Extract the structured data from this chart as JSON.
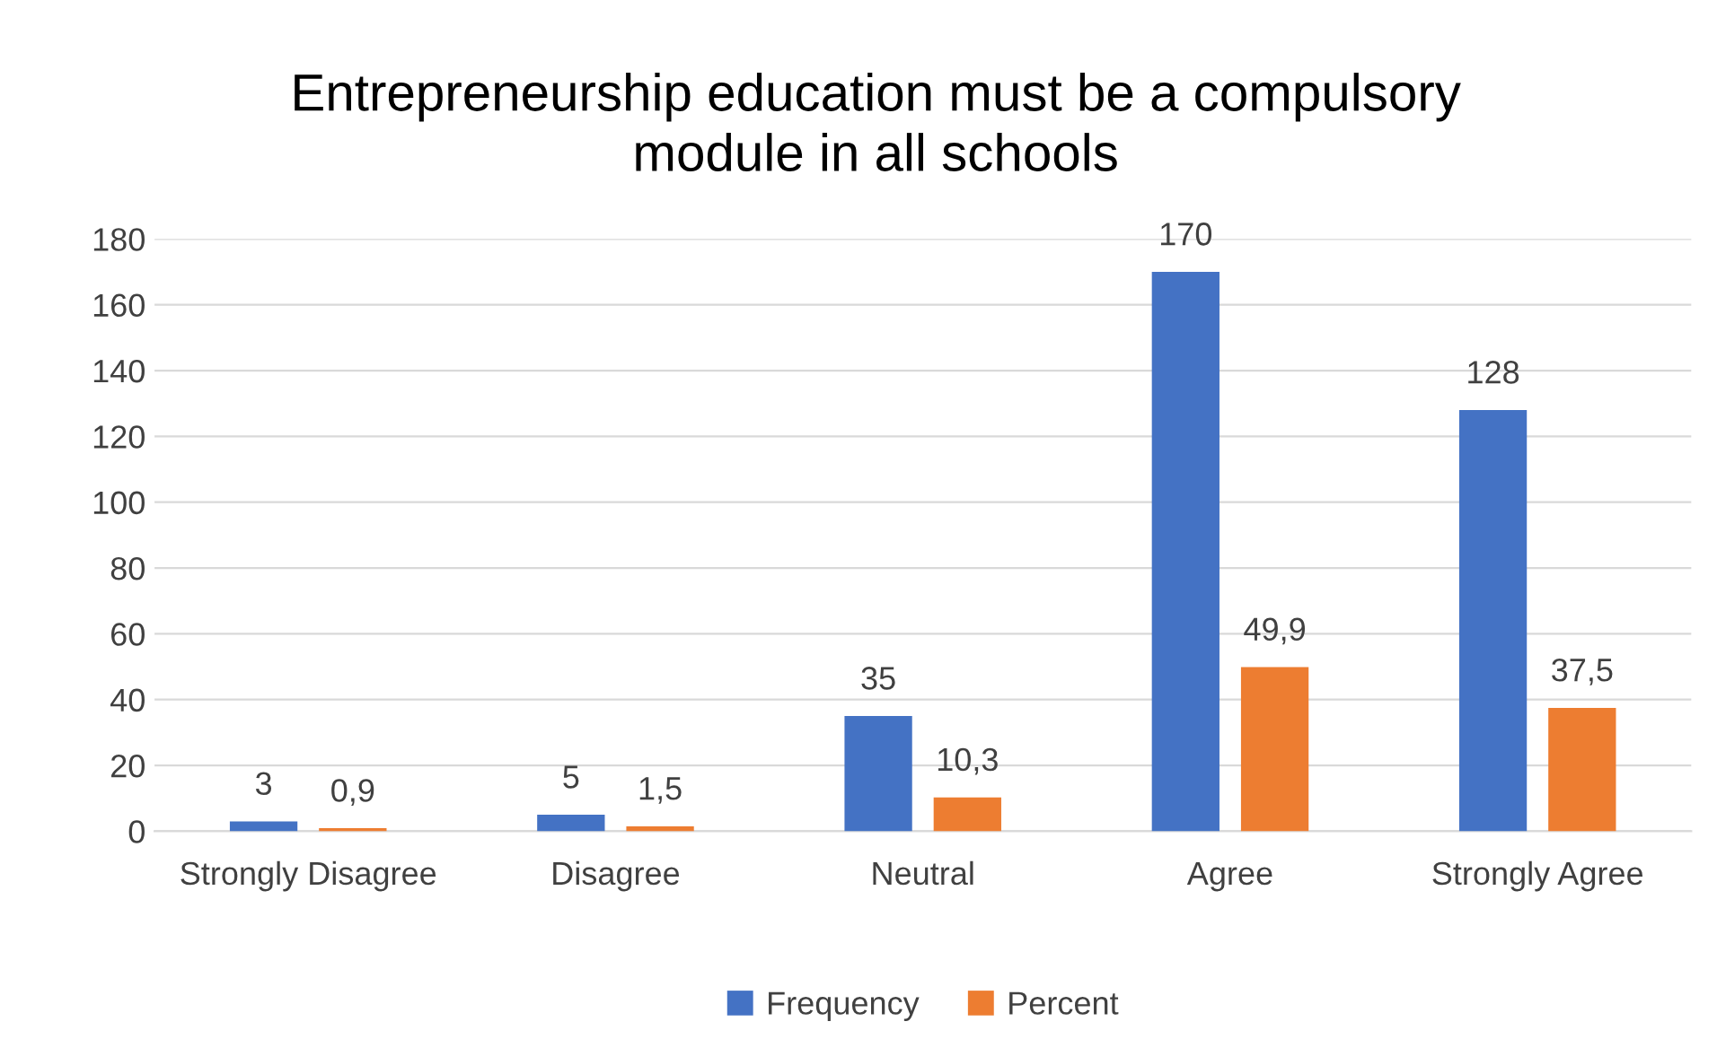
{
  "chart_data": {
    "type": "bar",
    "title": "Entrepreneurship education must be a compulsory\nmodule in all schools",
    "categories": [
      "Strongly Disagree",
      "Disagree",
      "Neutral",
      "Agree",
      "Strongly Agree"
    ],
    "series": [
      {
        "name": "Frequency",
        "color": "#4472c4",
        "values": [
          3,
          5,
          35,
          170,
          128
        ],
        "value_labels": [
          "3",
          "5",
          "35",
          "170",
          "128"
        ]
      },
      {
        "name": "Percent",
        "color": "#ed7d31",
        "values": [
          0.9,
          1.5,
          10.3,
          49.9,
          37.5
        ],
        "value_labels": [
          "0,9",
          "1,5",
          "10,3",
          "49,9",
          "37,5"
        ]
      }
    ],
    "ylim": [
      0,
      180
    ],
    "yticks": [
      0,
      20,
      40,
      60,
      80,
      100,
      120,
      140,
      160,
      180
    ],
    "grid": "y",
    "legend": "bottom"
  }
}
